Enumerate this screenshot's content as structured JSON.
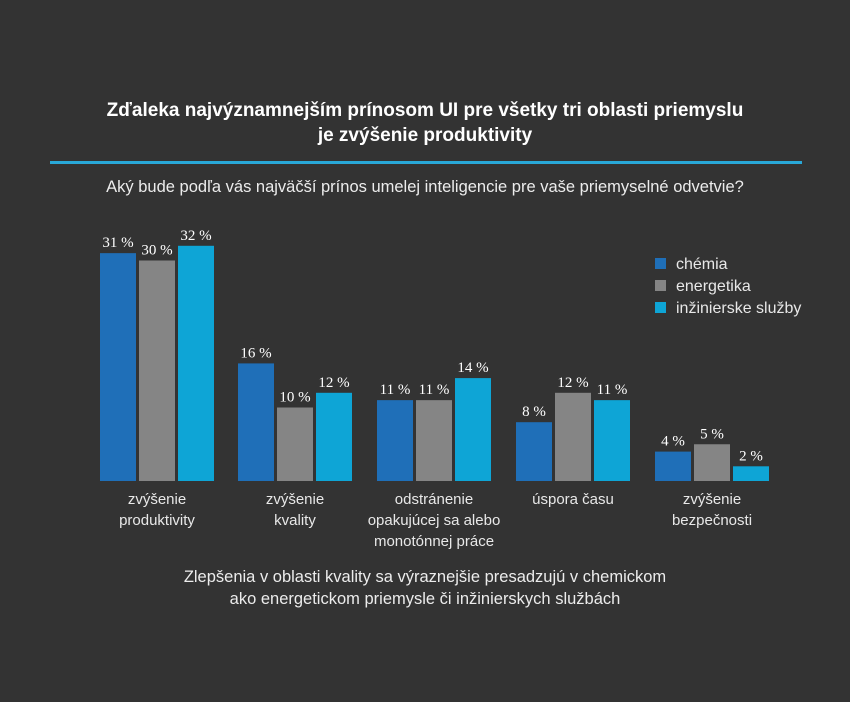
{
  "title": {
    "line1": "Zďaleka najvýznamnejším prínosom UI pre všetky tri oblasti priemyslu",
    "line2": "je zvýšenie produktivity"
  },
  "question": "Aký bude podľa vás najväčší prínos umelej inteligencie pre vaše priemyselné odvetvie?",
  "footer": {
    "line1": "Zlepšenia v oblasti kvality sa výraznejšie presadzujú v chemickom",
    "line2": "ako energetickom priemysle či inžinierskych službách"
  },
  "colors": {
    "background": "#333333",
    "accent_rule": "#29a8d8"
  },
  "chart_data": {
    "type": "bar",
    "title": "",
    "xlabel": "",
    "ylabel": "",
    "ylim": [
      0,
      32
    ],
    "grid": false,
    "legend_position": "top-right",
    "value_suffix": " %",
    "categories": [
      [
        "zvýšenie",
        "produktivity"
      ],
      [
        "zvýšenie",
        "kvality"
      ],
      [
        "odstránenie",
        "opakujúcej sa alebo",
        "monotónnej práce"
      ],
      [
        "úspora času"
      ],
      [
        "zvýšenie",
        "bezpečnosti"
      ]
    ],
    "series": [
      {
        "name": "chémia",
        "color": "#1f6fb8",
        "values": [
          31,
          16,
          11,
          8,
          4
        ]
      },
      {
        "name": "energetika",
        "color": "#858585",
        "values": [
          30,
          10,
          11,
          12,
          5
        ]
      },
      {
        "name": "inžinierske služby",
        "color": "#0ea5d6",
        "values": [
          32,
          12,
          14,
          11,
          2
        ]
      }
    ]
  }
}
